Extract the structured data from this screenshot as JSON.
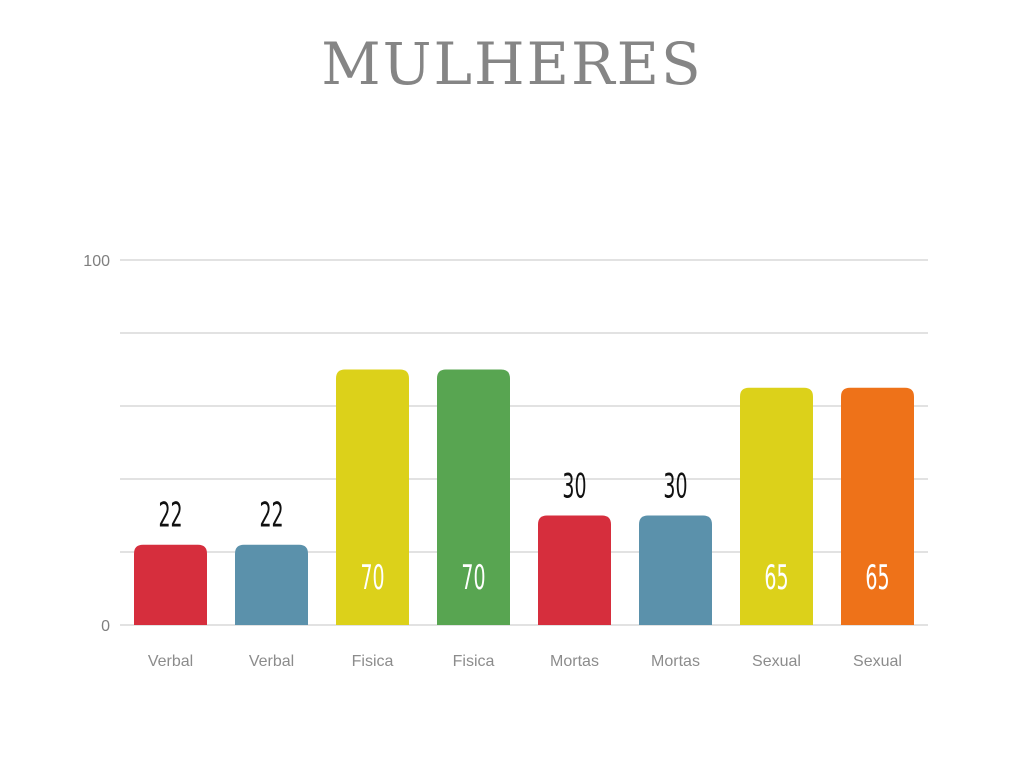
{
  "chart_data": {
    "type": "bar",
    "title": "MULHERES",
    "categories": [
      "Verbal",
      "Verbal",
      "Fisica",
      "Fisica",
      "Mortas",
      "Mortas",
      "Sexual",
      "Sexual"
    ],
    "values": [
      22,
      22,
      70,
      70,
      30,
      30,
      65,
      65
    ],
    "value_labels": [
      "22",
      "22",
      "70",
      "70",
      "30",
      "30",
      "65",
      "65"
    ],
    "colors": [
      "#d62e3d",
      "#5b91ab",
      "#dcd11a",
      "#58a551",
      "#d62e3d",
      "#5b91ab",
      "#dcd11a",
      "#ee7219"
    ],
    "label_inside": [
      false,
      false,
      true,
      true,
      false,
      false,
      true,
      true
    ],
    "ylim": [
      0,
      100
    ],
    "yticks": [
      0,
      20,
      40,
      60,
      80,
      100
    ],
    "ytick_labels": [
      "0",
      "",
      "",
      "",
      "",
      "100"
    ],
    "xlabel": "",
    "ylabel": "",
    "grid": true,
    "legend": "none"
  }
}
